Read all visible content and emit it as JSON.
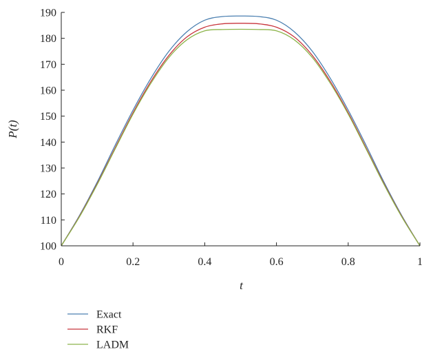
{
  "chart_data": {
    "type": "line",
    "xlabel": "t",
    "ylabel": "P(t)",
    "xlim": [
      0,
      1
    ],
    "ylim": [
      100,
      190
    ],
    "xticks": [
      0,
      0.2,
      0.4,
      0.6,
      0.8,
      1
    ],
    "xtick_labels": [
      "0",
      "0.2",
      "0.4",
      "0.6",
      "0.8",
      "1"
    ],
    "yticks": [
      100,
      110,
      120,
      130,
      140,
      150,
      160,
      170,
      180,
      190
    ],
    "ytick_labels": [
      "100",
      "110",
      "120",
      "130",
      "140",
      "150",
      "160",
      "170",
      "180",
      "190"
    ],
    "grid": false,
    "legend_position": "bottom-left",
    "x": [
      0,
      0.05,
      0.1,
      0.15,
      0.2,
      0.25,
      0.3,
      0.35,
      0.4,
      0.45,
      0.5,
      0.55,
      0.6,
      0.65,
      0.7,
      0.75,
      0.8,
      0.85,
      0.9,
      0.95,
      1
    ],
    "series": [
      {
        "name": "Exact",
        "color": "#4a7fb0",
        "values": [
          100,
          111.5,
          124.5,
          138.7,
          152.3,
          164.6,
          175.0,
          182.5,
          187.0,
          188.4,
          188.6,
          188.4,
          187.0,
          182.5,
          175.0,
          164.6,
          152.3,
          138.7,
          124.5,
          111.5,
          100
        ]
      },
      {
        "name": "RKF",
        "color": "#c8343c",
        "values": [
          100,
          111.2,
          123.9,
          137.7,
          151.3,
          163.4,
          173.4,
          180.5,
          184.3,
          185.6,
          185.8,
          185.6,
          184.3,
          180.5,
          173.4,
          163.4,
          151.3,
          137.7,
          123.9,
          111.2,
          100
        ]
      },
      {
        "name": "LADM",
        "color": "#8cb44a",
        "values": [
          100,
          111.0,
          123.6,
          137.3,
          150.8,
          162.7,
          172.6,
          179.4,
          182.9,
          183.4,
          183.5,
          183.4,
          182.9,
          179.4,
          172.6,
          162.7,
          150.8,
          137.3,
          123.6,
          111.0,
          100
        ]
      }
    ]
  }
}
